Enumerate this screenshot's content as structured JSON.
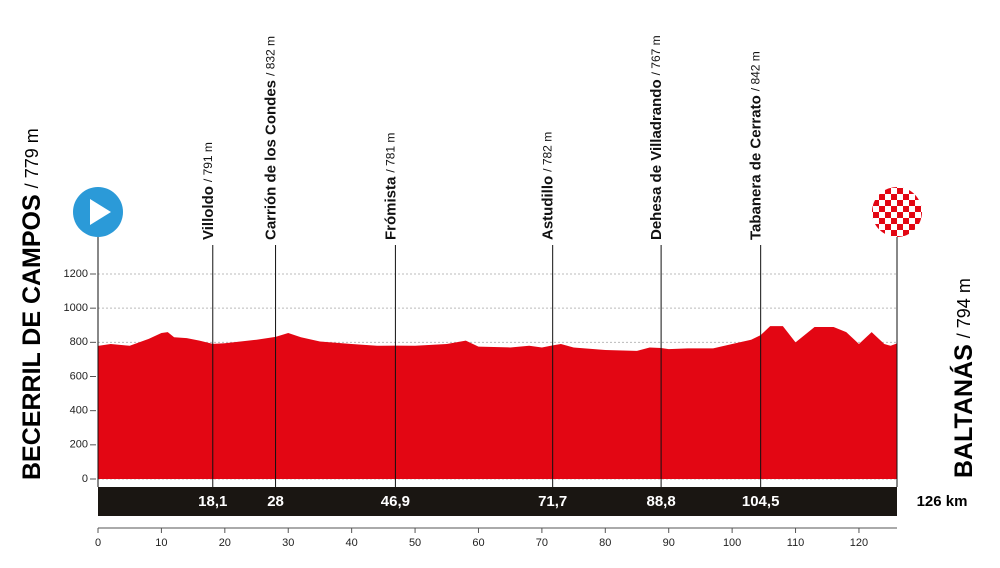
{
  "chart_data": {
    "type": "area",
    "color": "#e30613",
    "x": [
      0,
      2,
      5,
      8,
      10,
      11,
      12,
      14,
      16,
      18.1,
      20,
      25,
      28,
      30,
      32,
      35,
      40,
      44,
      46.9,
      50,
      55,
      58,
      60,
      65,
      68,
      70,
      71.7,
      73,
      75,
      80,
      85,
      87,
      88.8,
      90,
      93,
      97,
      100,
      103,
      104.5,
      106,
      108,
      110,
      112,
      113,
      116,
      118,
      120,
      122,
      124,
      125,
      126
    ],
    "values": [
      779,
      790,
      780,
      820,
      855,
      860,
      830,
      825,
      810,
      791,
      795,
      815,
      832,
      855,
      830,
      805,
      790,
      780,
      781,
      780,
      790,
      810,
      775,
      770,
      780,
      770,
      782,
      790,
      770,
      755,
      750,
      770,
      767,
      760,
      765,
      765,
      790,
      815,
      842,
      895,
      895,
      800,
      860,
      890,
      890,
      860,
      790,
      860,
      790,
      780,
      794
    ],
    "xlim": [
      0,
      126
    ],
    "ylim": [
      0,
      1200
    ],
    "xticks": [
      0,
      10,
      20,
      30,
      40,
      50,
      60,
      70,
      80,
      90,
      100,
      110,
      120
    ],
    "yticks": [
      0,
      200,
      400,
      600,
      800,
      1000,
      1200
    ],
    "grid": true,
    "start": {
      "name": "BECERRIL DE CAMPOS",
      "elevation": {
        "value": 779,
        "label": "/ 779 m"
      }
    },
    "finish": {
      "name": "BALTANÁS",
      "elevation": {
        "value": 794,
        "label": "/ 794 m"
      },
      "distance": {
        "value": 126,
        "label": "126 km"
      }
    },
    "waypoints": [
      {
        "name": "Villoldo",
        "elevation": {
          "value": 791,
          "label": "/ 791 m"
        },
        "km": {
          "value": 18.1,
          "label": "18,1"
        }
      },
      {
        "name": "Carrión de los Condes",
        "elevation": {
          "value": 832,
          "label": "/ 832 m"
        },
        "km": 28
      },
      {
        "name": "Frómista",
        "elevation": {
          "value": 781,
          "label": "/ 781 m"
        },
        "km": {
          "value": 46.9,
          "label": "46,9"
        }
      },
      {
        "name": "Astudillo",
        "elevation": {
          "value": 782,
          "label": "/ 782 m"
        },
        "km": {
          "value": 71.7,
          "label": "71,7"
        }
      },
      {
        "name": "Dehesa de Villadrando",
        "elevation": {
          "value": 767,
          "label": "/ 767 m"
        },
        "km": {
          "value": 88.8,
          "label": "88,8"
        }
      },
      {
        "name": "Tabanera de Cerrato",
        "elevation": {
          "value": 842,
          "label": "/ 842 m"
        },
        "km": {
          "value": 104.5,
          "label": "104,5"
        }
      }
    ]
  }
}
